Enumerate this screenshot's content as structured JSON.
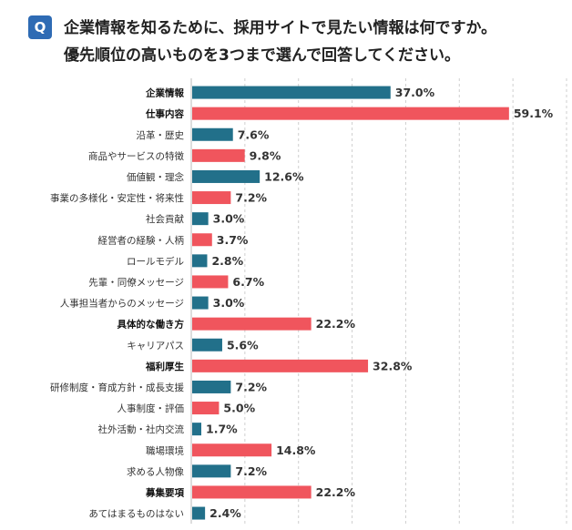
{
  "question": {
    "badge": "Q",
    "line1": "企業情報を知るために、採用サイトで見たい情報は何ですか。",
    "line2": "優先順位の高いものを3つまで選んで回答してください。"
  },
  "chart_data": {
    "type": "bar",
    "orientation": "horizontal",
    "xlim": [
      0,
      70
    ],
    "grid": true,
    "colors": {
      "teal": "#22708A",
      "red": "#F0555D"
    },
    "unit": "%",
    "categories": [
      "企業情報",
      "仕事内容",
      "沿革・歴史",
      "商品やサービスの特徴",
      "価値観・理念",
      "事業の多様化・安定性・将来性",
      "社会貢献",
      "経営者の経験・人柄",
      "ロールモデル",
      "先輩・同僚メッセージ",
      "人事担当者からのメッセージ",
      "具体的な働き方",
      "キャリアパス",
      "福利厚生",
      "研修制度・育成方針・成長支援",
      "人事制度・評価",
      "社外活動・社内交流",
      "職場環境",
      "求める人物像",
      "募集要項",
      "あてはまるものはない"
    ],
    "values": [
      37.0,
      59.1,
      7.6,
      9.8,
      12.6,
      7.2,
      3.0,
      3.7,
      2.8,
      6.7,
      3.0,
      22.2,
      5.6,
      32.8,
      7.2,
      5.0,
      1.7,
      14.8,
      7.2,
      22.2,
      2.4
    ],
    "labels": [
      "37.0%",
      "59.1%",
      "7.6%",
      "9.8%",
      "12.6%",
      "7.2%",
      "3.0%",
      "3.7%",
      "2.8%",
      "6.7%",
      "3.0%",
      "22.2%",
      "5.6%",
      "32.8%",
      "7.2%",
      "5.0%",
      "1.7%",
      "14.8%",
      "7.2%",
      "22.2%",
      "2.4%"
    ],
    "bar_colors": [
      "teal",
      "red",
      "teal",
      "red",
      "teal",
      "red",
      "teal",
      "red",
      "teal",
      "red",
      "teal",
      "red",
      "teal",
      "red",
      "teal",
      "red",
      "teal",
      "red",
      "teal",
      "red",
      "teal"
    ],
    "bold_categories": [
      0,
      1,
      11,
      13,
      19
    ]
  }
}
